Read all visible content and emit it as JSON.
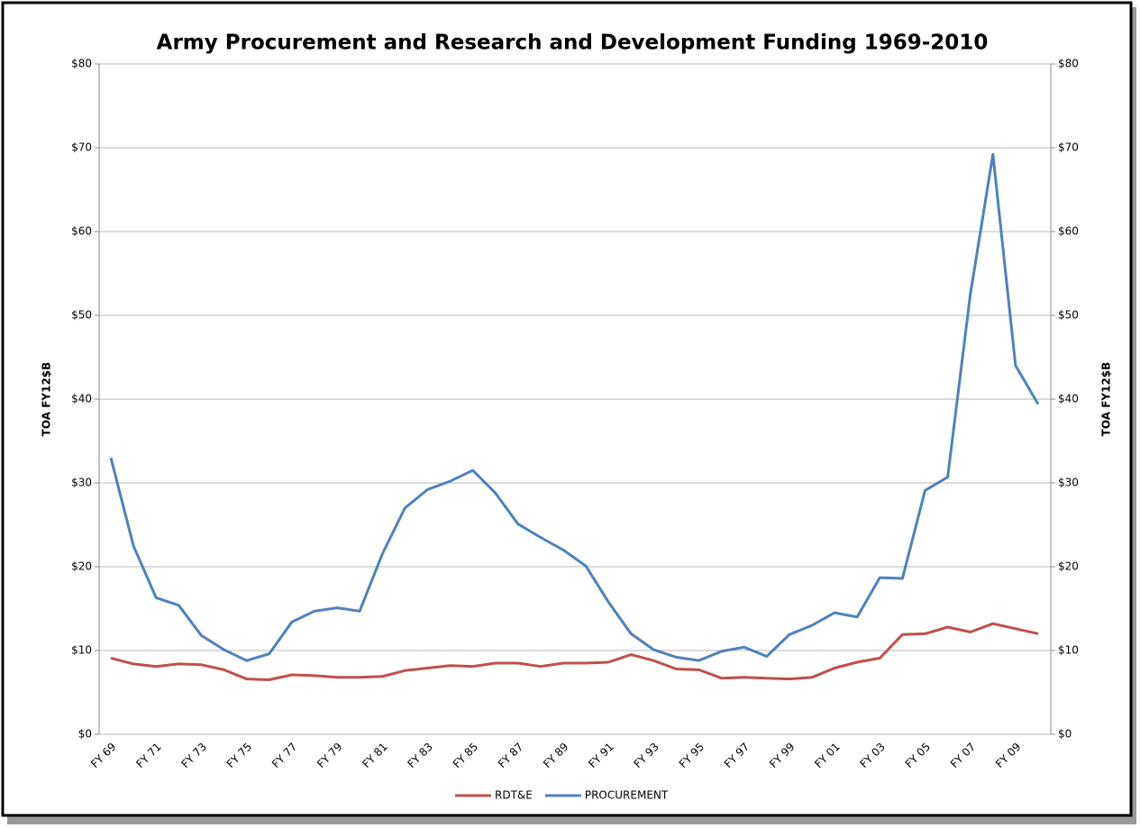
{
  "chart_data": {
    "type": "line",
    "title": "Army Procurement and Research and Development Funding 1969-2010",
    "y_label": "TOA FY12$B",
    "y2_label": "TOA FY12$B",
    "categories": [
      "FY 69",
      null,
      "FY 71",
      null,
      "FY 73",
      null,
      "FY 75",
      null,
      "FY 77",
      null,
      "FY 79",
      null,
      "FY 81",
      null,
      "FY 83",
      null,
      "FY 85",
      null,
      "FY 87",
      null,
      "FY 89",
      null,
      "FY 91",
      null,
      "FY 93",
      null,
      "FY 95",
      null,
      "FY 97",
      null,
      "FY 99",
      null,
      "FY 01",
      null,
      "FY 03",
      null,
      "FY 05",
      null,
      "FY 07",
      null,
      "FY 09",
      null
    ],
    "series": [
      {
        "name": "RDT&E",
        "color": "#c0504d",
        "values": [
          9.1,
          8.4,
          8.1,
          8.4,
          8.3,
          7.7,
          6.6,
          6.5,
          7.1,
          7.0,
          6.8,
          6.8,
          6.9,
          7.6,
          7.9,
          8.2,
          8.1,
          8.5,
          8.5,
          8.1,
          8.5,
          8.5,
          8.6,
          9.5,
          8.8,
          7.8,
          7.7,
          6.7,
          6.8,
          6.7,
          6.6,
          6.8,
          7.9,
          8.6,
          9.1,
          11.9,
          12.0,
          12.8,
          12.2,
          13.2,
          12.6,
          12.0
        ]
      },
      {
        "name": "PROCUREMENT",
        "color": "#4f81bd",
        "values": [
          33.0,
          22.5,
          16.3,
          15.4,
          11.8,
          10.1,
          8.8,
          9.6,
          13.4,
          14.7,
          15.1,
          14.7,
          21.5,
          27.0,
          29.2,
          30.2,
          31.5,
          28.8,
          25.1,
          23.5,
          22.0,
          20.1,
          15.8,
          12.0,
          10.1,
          9.2,
          8.8,
          9.9,
          10.4,
          9.3,
          11.9,
          13.0,
          14.5,
          14.0,
          18.7,
          18.6,
          29.1,
          30.7,
          52.5,
          69.2,
          44.0,
          39.4
        ]
      }
    ],
    "ylim": [
      0,
      80
    ],
    "yticks": [
      {
        "value": 0,
        "label": "$0"
      },
      {
        "value": 10,
        "label": "$10"
      },
      {
        "value": 20,
        "label": "$20"
      },
      {
        "value": 30,
        "label": "$30"
      },
      {
        "value": 40,
        "label": "$40"
      },
      {
        "value": 50,
        "label": "$50"
      },
      {
        "value": 60,
        "label": "$60"
      },
      {
        "value": 70,
        "label": "$70"
      },
      {
        "value": 80,
        "label": "$80"
      }
    ],
    "y2lim": [
      0,
      80
    ],
    "y2ticks": [
      {
        "value": 0,
        "label": "$0"
      },
      {
        "value": 10,
        "label": "$10"
      },
      {
        "value": 20,
        "label": "$20"
      },
      {
        "value": 30,
        "label": "$30"
      },
      {
        "value": 40,
        "label": "$40"
      },
      {
        "value": 50,
        "label": "$50"
      },
      {
        "value": 60,
        "label": "$60"
      },
      {
        "value": 70,
        "label": "$70"
      },
      {
        "value": 80,
        "label": "$80"
      }
    ],
    "grid": true,
    "legend": "bottom"
  }
}
